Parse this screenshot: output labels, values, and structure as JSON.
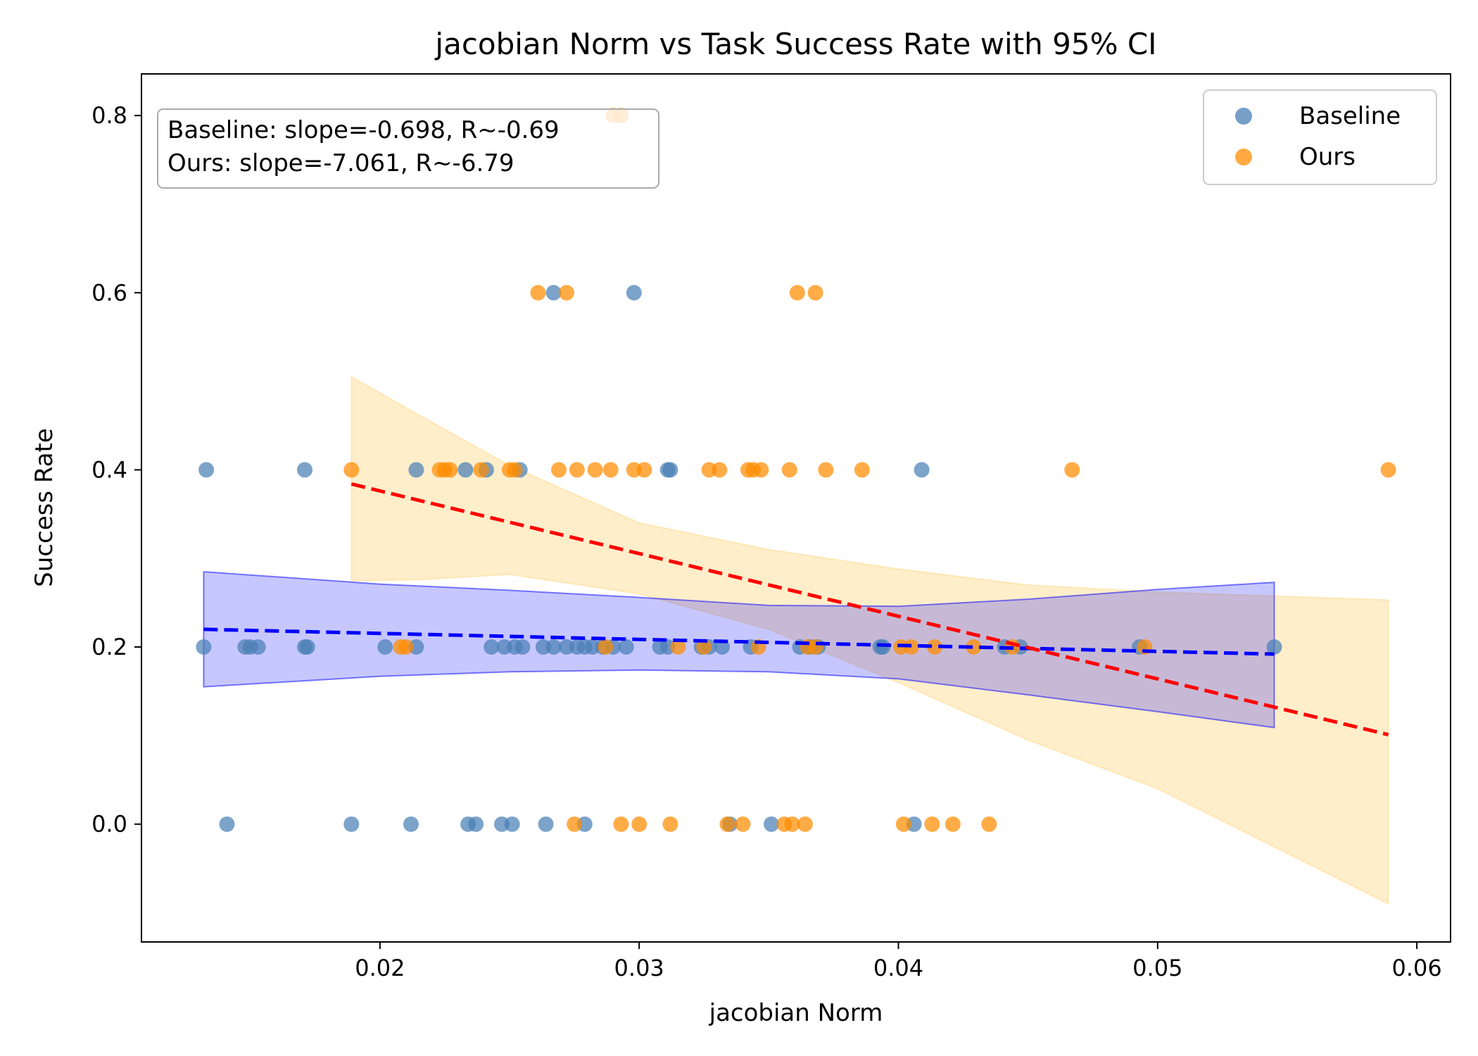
{
  "chart_data": {
    "type": "scatter",
    "title": "jacobian Norm vs Task Success Rate with 95% CI",
    "xlabel": "jacobian Norm",
    "ylabel": "Success Rate",
    "xlim": [
      0.0108,
      0.0613
    ],
    "ylim": [
      -0.133,
      0.847
    ],
    "xticks": [
      0.02,
      0.03,
      0.04,
      0.05,
      0.06
    ],
    "xtick_labels": [
      "0.02",
      "0.03",
      "0.04",
      "0.05",
      "0.06"
    ],
    "yticks": [
      0.0,
      0.2,
      0.4,
      0.6,
      0.8
    ],
    "ytick_labels": [
      "0.0",
      "0.2",
      "0.4",
      "0.6",
      "0.8"
    ],
    "grid": false,
    "legend_position": "top-right",
    "stats_box": {
      "baseline": "Baseline: slope=-0.698, R~-0.69",
      "ours": "Ours: slope=-7.061, R~-6.79"
    },
    "series": [
      {
        "name": "Baseline",
        "color": "#4a7fb5",
        "line_color": "#0000ff",
        "band_color": "#0000ff",
        "points": [
          [
            0.0132,
            0.2
          ],
          [
            0.0148,
            0.2
          ],
          [
            0.015,
            0.2
          ],
          [
            0.0153,
            0.2
          ],
          [
            0.0171,
            0.2
          ],
          [
            0.0172,
            0.2
          ],
          [
            0.0202,
            0.2
          ],
          [
            0.0214,
            0.2
          ],
          [
            0.0243,
            0.2
          ],
          [
            0.0248,
            0.2
          ],
          [
            0.0252,
            0.2
          ],
          [
            0.0255,
            0.2
          ],
          [
            0.0263,
            0.2
          ],
          [
            0.0267,
            0.2
          ],
          [
            0.0272,
            0.2
          ],
          [
            0.0276,
            0.2
          ],
          [
            0.0279,
            0.2
          ],
          [
            0.0282,
            0.2
          ],
          [
            0.0286,
            0.2
          ],
          [
            0.029,
            0.2
          ],
          [
            0.0295,
            0.2
          ],
          [
            0.0308,
            0.2
          ],
          [
            0.0311,
            0.2
          ],
          [
            0.0324,
            0.2
          ],
          [
            0.0327,
            0.2
          ],
          [
            0.0332,
            0.2
          ],
          [
            0.0343,
            0.2
          ],
          [
            0.0362,
            0.2
          ],
          [
            0.0366,
            0.2
          ],
          [
            0.0369,
            0.2
          ],
          [
            0.0393,
            0.2
          ],
          [
            0.0394,
            0.2
          ],
          [
            0.0441,
            0.2
          ],
          [
            0.0447,
            0.2
          ],
          [
            0.0493,
            0.2
          ],
          [
            0.0545,
            0.2
          ],
          [
            0.0133,
            0.4
          ],
          [
            0.0171,
            0.4
          ],
          [
            0.0214,
            0.4
          ],
          [
            0.0233,
            0.4
          ],
          [
            0.0241,
            0.4
          ],
          [
            0.0254,
            0.4
          ],
          [
            0.0311,
            0.4
          ],
          [
            0.0312,
            0.4
          ],
          [
            0.0409,
            0.4
          ],
          [
            0.0267,
            0.6
          ],
          [
            0.0298,
            0.6
          ],
          [
            0.0141,
            0.0
          ],
          [
            0.0189,
            0.0
          ],
          [
            0.0212,
            0.0
          ],
          [
            0.0234,
            0.0
          ],
          [
            0.0237,
            0.0
          ],
          [
            0.0247,
            0.0
          ],
          [
            0.0251,
            0.0
          ],
          [
            0.0264,
            0.0
          ],
          [
            0.0279,
            0.0
          ],
          [
            0.0335,
            0.0
          ],
          [
            0.0351,
            0.0
          ],
          [
            0.0406,
            0.0
          ]
        ],
        "fit": {
          "x": [
            0.0132,
            0.0545
          ],
          "y": [
            0.22,
            0.192
          ]
        },
        "ci_band": {
          "x": [
            0.0132,
            0.02,
            0.025,
            0.03,
            0.035,
            0.04,
            0.045,
            0.05,
            0.0545
          ],
          "lower": [
            0.155,
            0.167,
            0.172,
            0.174,
            0.172,
            0.164,
            0.146,
            0.127,
            0.109
          ],
          "upper": [
            0.285,
            0.271,
            0.264,
            0.256,
            0.247,
            0.246,
            0.254,
            0.265,
            0.273
          ]
        }
      },
      {
        "name": "Ours",
        "color": "#ff8c00",
        "line_color": "#ff0000",
        "band_color": "#ffd98a",
        "points": [
          [
            0.0189,
            0.4
          ],
          [
            0.0223,
            0.4
          ],
          [
            0.0225,
            0.4
          ],
          [
            0.0227,
            0.4
          ],
          [
            0.0239,
            0.4
          ],
          [
            0.025,
            0.4
          ],
          [
            0.0252,
            0.4
          ],
          [
            0.0269,
            0.4
          ],
          [
            0.0276,
            0.4
          ],
          [
            0.0283,
            0.4
          ],
          [
            0.0289,
            0.4
          ],
          [
            0.0298,
            0.4
          ],
          [
            0.0302,
            0.4
          ],
          [
            0.0327,
            0.4
          ],
          [
            0.0331,
            0.4
          ],
          [
            0.0342,
            0.4
          ],
          [
            0.0344,
            0.4
          ],
          [
            0.0347,
            0.4
          ],
          [
            0.0358,
            0.4
          ],
          [
            0.0372,
            0.4
          ],
          [
            0.0386,
            0.4
          ],
          [
            0.0467,
            0.4
          ],
          [
            0.0589,
            0.4
          ],
          [
            0.0261,
            0.6
          ],
          [
            0.0272,
            0.6
          ],
          [
            0.0361,
            0.6
          ],
          [
            0.0368,
            0.6
          ],
          [
            0.029,
            0.8
          ],
          [
            0.0293,
            0.8
          ],
          [
            0.0208,
            0.2
          ],
          [
            0.021,
            0.2
          ],
          [
            0.0287,
            0.2
          ],
          [
            0.0315,
            0.2
          ],
          [
            0.0325,
            0.2
          ],
          [
            0.0346,
            0.2
          ],
          [
            0.0365,
            0.2
          ],
          [
            0.0368,
            0.2
          ],
          [
            0.0401,
            0.2
          ],
          [
            0.0405,
            0.2
          ],
          [
            0.0414,
            0.2
          ],
          [
            0.0429,
            0.2
          ],
          [
            0.0444,
            0.2
          ],
          [
            0.0495,
            0.2
          ],
          [
            0.0275,
            0.0
          ],
          [
            0.0293,
            0.0
          ],
          [
            0.03,
            0.0
          ],
          [
            0.0312,
            0.0
          ],
          [
            0.0334,
            0.0
          ],
          [
            0.034,
            0.0
          ],
          [
            0.0356,
            0.0
          ],
          [
            0.0359,
            0.0
          ],
          [
            0.0364,
            0.0
          ],
          [
            0.0402,
            0.0
          ],
          [
            0.0413,
            0.0
          ],
          [
            0.0421,
            0.0
          ],
          [
            0.0435,
            0.0
          ]
        ],
        "fit": {
          "x": [
            0.0189,
            0.0589
          ],
          "y": [
            0.384,
            0.101
          ]
        },
        "ci_band": {
          "x": [
            0.0189,
            0.0215,
            0.025,
            0.03,
            0.035,
            0.04,
            0.045,
            0.05,
            0.0589
          ],
          "lower": [
            0.275,
            0.276,
            0.282,
            0.26,
            0.22,
            0.16,
            0.095,
            0.04,
            -0.09
          ],
          "upper": [
            0.505,
            0.462,
            0.405,
            0.34,
            0.31,
            0.288,
            0.27,
            0.262,
            0.253
          ]
        }
      }
    ]
  }
}
